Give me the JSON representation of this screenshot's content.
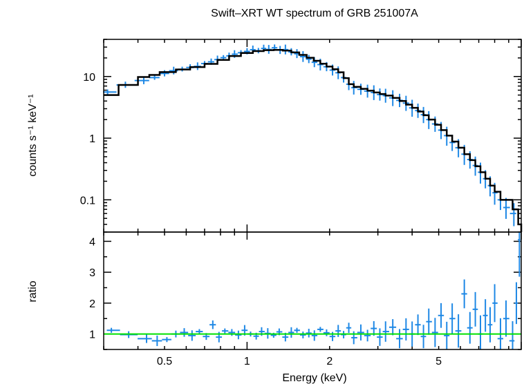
{
  "chart_data": [
    {
      "type": "scatter",
      "title": "Swift–XRT WT spectrum of GRB 251007A",
      "ylabel": "counts s⁻¹ keV⁻¹",
      "xscale": "log",
      "yscale": "log",
      "xlim": [
        0.3,
        10
      ],
      "ylim": [
        0.03,
        40
      ],
      "yticks": [
        {
          "value": 0.1,
          "label": "0.1"
        },
        {
          "value": 1,
          "label": "1"
        },
        {
          "value": 10,
          "label": "10"
        }
      ],
      "colors": {
        "data": "#1e88e5",
        "model": "#000000"
      },
      "series": [
        {
          "style": "data-crosses",
          "points": [
            {
              "x": 0.31,
              "y": 5.6
            },
            {
              "x": 0.36,
              "y": 7.3
            },
            {
              "x": 0.42,
              "y": 8.6
            },
            {
              "x": 0.46,
              "y": 9.6
            },
            {
              "x": 0.5,
              "y": 11.2
            },
            {
              "x": 0.54,
              "y": 12.4
            },
            {
              "x": 0.58,
              "y": 13.1
            },
            {
              "x": 0.62,
              "y": 14.0
            },
            {
              "x": 0.66,
              "y": 14.6
            },
            {
              "x": 0.7,
              "y": 16.2
            },
            {
              "x": 0.74,
              "y": 17.3
            },
            {
              "x": 0.78,
              "y": 18.8
            },
            {
              "x": 0.82,
              "y": 20.2
            },
            {
              "x": 0.86,
              "y": 21.6
            },
            {
              "x": 0.9,
              "y": 23.0
            },
            {
              "x": 0.95,
              "y": 24.3
            },
            {
              "x": 1.0,
              "y": 25.5
            },
            {
              "x": 1.05,
              "y": 27.2
            },
            {
              "x": 1.1,
              "y": 26.1
            },
            {
              "x": 1.15,
              "y": 28.5
            },
            {
              "x": 1.2,
              "y": 27.4
            },
            {
              "x": 1.26,
              "y": 29.2
            },
            {
              "x": 1.32,
              "y": 26.8
            },
            {
              "x": 1.38,
              "y": 27.3
            },
            {
              "x": 1.45,
              "y": 25.0
            },
            {
              "x": 1.52,
              "y": 23.4
            },
            {
              "x": 1.6,
              "y": 21.0
            },
            {
              "x": 1.68,
              "y": 19.1
            },
            {
              "x": 1.76,
              "y": 17.0
            },
            {
              "x": 1.85,
              "y": 15.6
            },
            {
              "x": 1.95,
              "y": 14.4
            },
            {
              "x": 2.05,
              "y": 12.7
            },
            {
              "x": 2.15,
              "y": 11.5
            },
            {
              "x": 2.25,
              "y": 9.6
            },
            {
              "x": 2.35,
              "y": 7.5
            },
            {
              "x": 2.45,
              "y": 6.6
            },
            {
              "x": 2.6,
              "y": 6.2
            },
            {
              "x": 2.75,
              "y": 5.8
            },
            {
              "x": 2.9,
              "y": 5.5
            },
            {
              "x": 3.05,
              "y": 5.1
            },
            {
              "x": 3.2,
              "y": 4.9
            },
            {
              "x": 3.4,
              "y": 4.5
            },
            {
              "x": 3.6,
              "y": 4.1
            },
            {
              "x": 3.8,
              "y": 3.7
            },
            {
              "x": 4.0,
              "y": 3.1
            },
            {
              "x": 4.2,
              "y": 2.8
            },
            {
              "x": 4.4,
              "y": 2.4
            },
            {
              "x": 4.6,
              "y": 2.0
            },
            {
              "x": 4.85,
              "y": 1.7
            },
            {
              "x": 5.1,
              "y": 1.35
            },
            {
              "x": 5.35,
              "y": 1.1
            },
            {
              "x": 5.6,
              "y": 0.85
            },
            {
              "x": 5.9,
              "y": 0.7
            },
            {
              "x": 6.2,
              "y": 0.55
            },
            {
              "x": 6.5,
              "y": 0.45
            },
            {
              "x": 6.8,
              "y": 0.36
            },
            {
              "x": 7.1,
              "y": 0.28
            },
            {
              "x": 7.4,
              "y": 0.22
            },
            {
              "x": 7.7,
              "y": 0.17
            },
            {
              "x": 8.0,
              "y": 0.13
            },
            {
              "x": 8.4,
              "y": 0.1
            },
            {
              "x": 8.8,
              "y": 0.075
            },
            {
              "x": 9.4,
              "y": 0.06
            }
          ]
        },
        {
          "style": "model-step",
          "points": [
            {
              "x": 0.3,
              "y": 5.0
            },
            {
              "x": 0.34,
              "y": 7.3
            },
            {
              "x": 0.4,
              "y": 9.8
            },
            {
              "x": 0.44,
              "y": 10.6
            },
            {
              "x": 0.48,
              "y": 11.8
            },
            {
              "x": 0.55,
              "y": 13.0
            },
            {
              "x": 0.62,
              "y": 14.2
            },
            {
              "x": 0.7,
              "y": 16.0
            },
            {
              "x": 0.78,
              "y": 18.6
            },
            {
              "x": 0.86,
              "y": 21.5
            },
            {
              "x": 0.95,
              "y": 24.0
            },
            {
              "x": 1.05,
              "y": 25.8
            },
            {
              "x": 1.15,
              "y": 26.7
            },
            {
              "x": 1.25,
              "y": 27.0
            },
            {
              "x": 1.35,
              "y": 26.3
            },
            {
              "x": 1.45,
              "y": 24.6
            },
            {
              "x": 1.55,
              "y": 22.4
            },
            {
              "x": 1.65,
              "y": 20.1
            },
            {
              "x": 1.75,
              "y": 18.0
            },
            {
              "x": 1.85,
              "y": 16.1
            },
            {
              "x": 1.95,
              "y": 14.5
            },
            {
              "x": 2.05,
              "y": 13.1
            },
            {
              "x": 2.15,
              "y": 11.7
            },
            {
              "x": 2.25,
              "y": 9.4
            },
            {
              "x": 2.35,
              "y": 7.5
            },
            {
              "x": 2.45,
              "y": 6.8
            },
            {
              "x": 2.6,
              "y": 6.3
            },
            {
              "x": 2.75,
              "y": 5.9
            },
            {
              "x": 2.9,
              "y": 5.5
            },
            {
              "x": 3.05,
              "y": 5.2
            },
            {
              "x": 3.2,
              "y": 4.9
            },
            {
              "x": 3.4,
              "y": 4.5
            },
            {
              "x": 3.6,
              "y": 4.0
            },
            {
              "x": 3.8,
              "y": 3.5
            },
            {
              "x": 4.0,
              "y": 3.1
            },
            {
              "x": 4.2,
              "y": 2.7
            },
            {
              "x": 4.4,
              "y": 2.35
            },
            {
              "x": 4.6,
              "y": 2.0
            },
            {
              "x": 4.85,
              "y": 1.65
            },
            {
              "x": 5.1,
              "y": 1.35
            },
            {
              "x": 5.35,
              "y": 1.1
            },
            {
              "x": 5.6,
              "y": 0.88
            },
            {
              "x": 5.9,
              "y": 0.7
            },
            {
              "x": 6.2,
              "y": 0.55
            },
            {
              "x": 6.5,
              "y": 0.44
            },
            {
              "x": 6.8,
              "y": 0.35
            },
            {
              "x": 7.1,
              "y": 0.28
            },
            {
              "x": 7.4,
              "y": 0.22
            },
            {
              "x": 7.7,
              "y": 0.17
            },
            {
              "x": 8.0,
              "y": 0.135
            },
            {
              "x": 8.4,
              "y": 0.1
            },
            {
              "x": 9.3,
              "y": 0.07
            },
            {
              "x": 9.75,
              "y": 0.04
            }
          ]
        }
      ]
    },
    {
      "type": "scatter",
      "xlabel": "Energy (keV)",
      "ylabel": "ratio",
      "xscale": "log",
      "yscale": "linear",
      "xlim": [
        0.3,
        10
      ],
      "ylim": [
        0.5,
        4.3
      ],
      "xticks": [
        {
          "value": 0.5,
          "label": "0.5"
        },
        {
          "value": 1,
          "label": "1"
        },
        {
          "value": 2,
          "label": "2"
        },
        {
          "value": 5,
          "label": "5"
        }
      ],
      "yticks": [
        {
          "value": 1,
          "label": "1"
        },
        {
          "value": 2,
          "label": "2"
        },
        {
          "value": 3,
          "label": "3"
        },
        {
          "value": 4,
          "label": "4"
        }
      ],
      "reference_line": {
        "y": 1,
        "color": "#00e000"
      },
      "colors": {
        "data": "#1e88e5"
      },
      "series": [
        {
          "style": "data-crosses",
          "points": [
            {
              "x": 0.32,
              "y": 1.12
            },
            {
              "x": 0.37,
              "y": 0.98
            },
            {
              "x": 0.43,
              "y": 0.85
            },
            {
              "x": 0.47,
              "y": 0.78
            },
            {
              "x": 0.51,
              "y": 0.82
            },
            {
              "x": 0.55,
              "y": 1.0
            },
            {
              "x": 0.59,
              "y": 1.05
            },
            {
              "x": 0.63,
              "y": 0.95
            },
            {
              "x": 0.67,
              "y": 1.08
            },
            {
              "x": 0.71,
              "y": 0.92
            },
            {
              "x": 0.75,
              "y": 1.3
            },
            {
              "x": 0.79,
              "y": 0.9
            },
            {
              "x": 0.83,
              "y": 1.1
            },
            {
              "x": 0.88,
              "y": 1.05
            },
            {
              "x": 0.93,
              "y": 0.97
            },
            {
              "x": 0.98,
              "y": 1.12
            },
            {
              "x": 1.03,
              "y": 1.0
            },
            {
              "x": 1.08,
              "y": 0.93
            },
            {
              "x": 1.13,
              "y": 1.08
            },
            {
              "x": 1.19,
              "y": 1.02
            },
            {
              "x": 1.25,
              "y": 0.96
            },
            {
              "x": 1.31,
              "y": 1.07
            },
            {
              "x": 1.38,
              "y": 0.9
            },
            {
              "x": 1.45,
              "y": 1.05
            },
            {
              "x": 1.52,
              "y": 1.12
            },
            {
              "x": 1.6,
              "y": 0.97
            },
            {
              "x": 1.68,
              "y": 1.03
            },
            {
              "x": 1.76,
              "y": 0.95
            },
            {
              "x": 1.85,
              "y": 1.15
            },
            {
              "x": 1.95,
              "y": 1.04
            },
            {
              "x": 2.05,
              "y": 0.92
            },
            {
              "x": 2.15,
              "y": 1.1
            },
            {
              "x": 2.25,
              "y": 0.98
            },
            {
              "x": 2.35,
              "y": 1.2
            },
            {
              "x": 2.45,
              "y": 0.88
            },
            {
              "x": 2.6,
              "y": 1.05
            },
            {
              "x": 2.75,
              "y": 0.95
            },
            {
              "x": 2.9,
              "y": 1.18
            },
            {
              "x": 3.05,
              "y": 0.9
            },
            {
              "x": 3.2,
              "y": 1.08
            },
            {
              "x": 3.4,
              "y": 1.22
            },
            {
              "x": 3.6,
              "y": 0.85
            },
            {
              "x": 3.8,
              "y": 1.15
            },
            {
              "x": 4.0,
              "y": 1.0
            },
            {
              "x": 4.2,
              "y": 1.3
            },
            {
              "x": 4.4,
              "y": 0.92
            },
            {
              "x": 4.6,
              "y": 1.4
            },
            {
              "x": 4.85,
              "y": 1.05
            },
            {
              "x": 5.1,
              "y": 1.6
            },
            {
              "x": 5.35,
              "y": 0.95
            },
            {
              "x": 5.6,
              "y": 1.5
            },
            {
              "x": 5.9,
              "y": 1.1
            },
            {
              "x": 6.2,
              "y": 2.3
            },
            {
              "x": 6.5,
              "y": 1.2
            },
            {
              "x": 6.8,
              "y": 1.8
            },
            {
              "x": 7.1,
              "y": 1.0
            },
            {
              "x": 7.4,
              "y": 1.6
            },
            {
              "x": 7.7,
              "y": 1.3
            },
            {
              "x": 8.0,
              "y": 2.0
            },
            {
              "x": 8.4,
              "y": 0.85
            },
            {
              "x": 8.8,
              "y": 1.5
            },
            {
              "x": 9.3,
              "y": 0.78
            },
            {
              "x": 9.6,
              "y": 2.0
            },
            {
              "x": 9.85,
              "y": 4.05
            }
          ]
        }
      ]
    }
  ]
}
